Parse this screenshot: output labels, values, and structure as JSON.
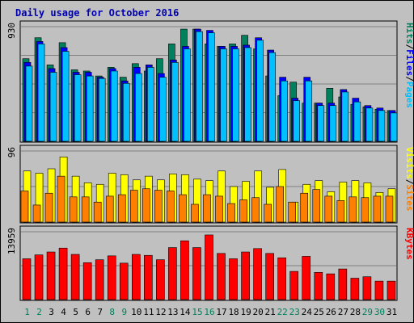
{
  "chart_data": {
    "type": "bar",
    "title": "Daily usage for October 2016",
    "categories": [
      "1",
      "2",
      "3",
      "4",
      "5",
      "6",
      "7",
      "8",
      "9",
      "10",
      "11",
      "12",
      "13",
      "14",
      "15",
      "16",
      "17",
      "18",
      "19",
      "20",
      "21",
      "22",
      "23",
      "24",
      "25",
      "26",
      "27",
      "28",
      "29",
      "30",
      "31"
    ],
    "weekend_days": [
      "1",
      "2",
      "8",
      "9",
      "15",
      "16",
      "22",
      "23",
      "29",
      "30"
    ],
    "colors": {
      "background": "#c0c0c0",
      "hits": "#00805c",
      "files": "#0000ff",
      "pages": "#00c0ff",
      "visits": "#ffff00",
      "sites": "#ff8000",
      "kbytes": "#ff0000",
      "weekday_label": "#000000",
      "weekend_label": "#00805c"
    },
    "panels": [
      {
        "name": "hits-files-pages",
        "ymax_label": "930",
        "ylim": [
          0,
          930
        ],
        "right_label": [
          "Pages",
          "Files",
          "Hits"
        ],
        "series": [
          {
            "name": "Hits",
            "values": [
              670,
              840,
              620,
              800,
              580,
              570,
              530,
              600,
              520,
              630,
              570,
              670,
              790,
              910,
              910,
              790,
              770,
              790,
              860,
              750,
              530,
              370,
              480,
              310,
              310,
              430,
              360,
              300,
              280,
              260,
              250
            ]
          },
          {
            "name": "Files",
            "values": [
              640,
              810,
              590,
              760,
              560,
              560,
              520,
              590,
              490,
              600,
              620,
              550,
              660,
              770,
              910,
              900,
              770,
              770,
              780,
              840,
              740,
              520,
              350,
              520,
              310,
              310,
              420,
              350,
              290,
              270,
              250
            ]
          },
          {
            "name": "Pages",
            "values": [
              610,
              790,
              560,
              730,
              540,
              530,
              510,
              570,
              470,
              550,
              600,
              520,
              640,
              750,
              890,
              880,
              750,
              750,
              760,
              820,
              720,
              490,
              330,
              490,
              290,
              290,
              400,
              320,
              270,
              250,
              230
            ]
          }
        ]
      },
      {
        "name": "visits-sites",
        "ymax_label": "96",
        "ylim": [
          0,
          96
        ],
        "right_label": [
          "Sites",
          "Visits"
        ],
        "series": [
          {
            "name": "Visits",
            "values": [
              69,
              66,
              72,
              88,
              62,
              53,
              51,
              66,
              64,
              57,
              62,
              57,
              65,
              64,
              58,
              56,
              69,
              48,
              55,
              69,
              47,
              71,
              27,
              51,
              56,
              41,
              54,
              56,
              53,
              40,
              45
            ]
          },
          {
            "name": "Sites",
            "values": [
              42,
              23,
              39,
              62,
              34,
              34,
              27,
              35,
              37,
              43,
              45,
              43,
              42,
              37,
              24,
              37,
              35,
              25,
              30,
              33,
              24,
              48,
              27,
              39,
              44,
              35,
              29,
              34,
              33,
              35,
              35
            ]
          }
        ]
      },
      {
        "name": "kbytes",
        "ymax_label": "13959",
        "ylim": [
          0,
          13959
        ],
        "right_label": [
          "KBytes"
        ],
        "series": [
          {
            "name": "KBytes",
            "values": [
              8400,
              9200,
              9800,
              10600,
              9300,
              7600,
              8200,
              9000,
              7500,
              9300,
              9100,
              8200,
              10700,
              12100,
              10700,
              13300,
              9500,
              8400,
              9800,
              10500,
              9500,
              8600,
              5800,
              8900,
              5600,
              5300,
              6300,
              4400,
              4700,
              3800,
              3800
            ]
          }
        ]
      }
    ]
  }
}
